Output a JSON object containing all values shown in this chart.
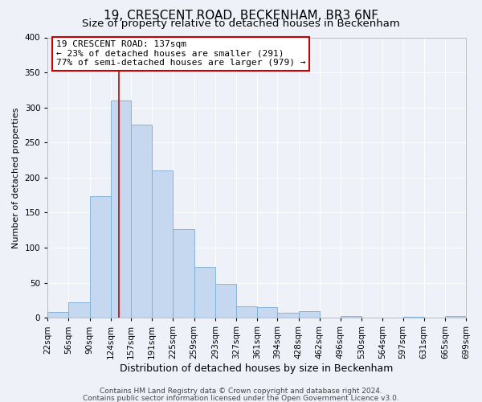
{
  "title": "19, CRESCENT ROAD, BECKENHAM, BR3 6NF",
  "subtitle": "Size of property relative to detached houses in Beckenham",
  "xlabel": "Distribution of detached houses by size in Beckenham",
  "ylabel": "Number of detached properties",
  "bar_color": "#c5d8f0",
  "bar_edge_color": "#7aadd4",
  "background_color": "#eef2f8",
  "grid_color": "#ffffff",
  "bin_labels": [
    "22sqm",
    "56sqm",
    "90sqm",
    "124sqm",
    "157sqm",
    "191sqm",
    "225sqm",
    "259sqm",
    "293sqm",
    "327sqm",
    "361sqm",
    "394sqm",
    "428sqm",
    "462sqm",
    "496sqm",
    "530sqm",
    "564sqm",
    "597sqm",
    "631sqm",
    "665sqm",
    "699sqm"
  ],
  "bar_heights": [
    8,
    22,
    173,
    310,
    275,
    210,
    126,
    73,
    48,
    16,
    15,
    7,
    9,
    0,
    3,
    0,
    0,
    2,
    0,
    3
  ],
  "bin_edges": [
    22,
    56,
    90,
    124,
    157,
    191,
    225,
    259,
    293,
    327,
    361,
    394,
    428,
    462,
    496,
    530,
    564,
    597,
    631,
    665,
    699
  ],
  "vline_x": 137,
  "vline_color": "#cc0000",
  "annotation_line1": "19 CRESCENT ROAD: 137sqm",
  "annotation_line2": "← 23% of detached houses are smaller (291)",
  "annotation_line3": "77% of semi-detached houses are larger (979) →",
  "annotation_box_color": "#ffffff",
  "annotation_box_edge_color": "#cc0000",
  "ylim": [
    0,
    400
  ],
  "footer1": "Contains HM Land Registry data © Crown copyright and database right 2024.",
  "footer2": "Contains public sector information licensed under the Open Government Licence v3.0.",
  "title_fontsize": 11,
  "subtitle_fontsize": 9.5,
  "xlabel_fontsize": 9,
  "ylabel_fontsize": 8,
  "tick_fontsize": 7.5,
  "annotation_fontsize": 8,
  "footer_fontsize": 6.5
}
